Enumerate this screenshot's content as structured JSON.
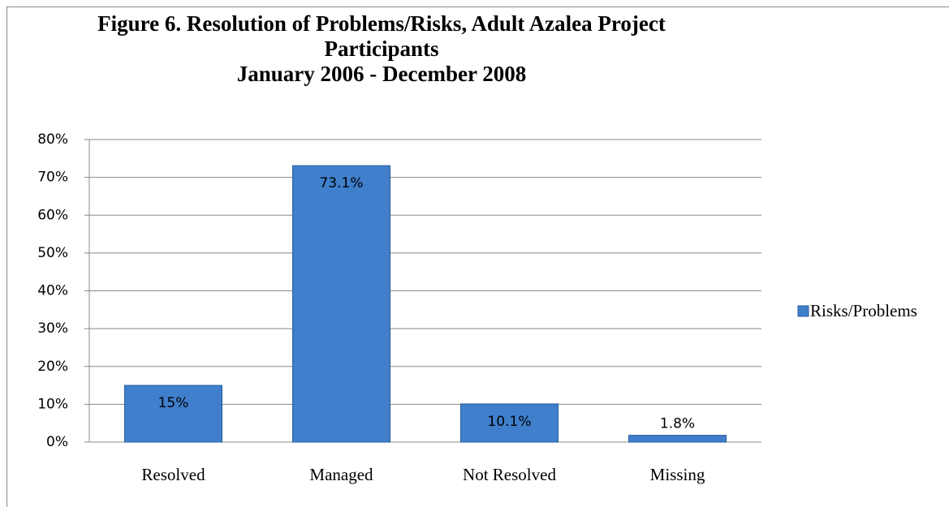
{
  "chart_data": {
    "type": "bar",
    "title": "Figure 6. Resolution of Problems/Risks, Adult Azalea Project Participants",
    "subtitle": "January 2006 - December 2008",
    "categories": [
      "Resolved",
      "Managed",
      "Not Resolved",
      "Missing"
    ],
    "series": [
      {
        "name": "Risks/Problems",
        "color": "#3f7fcc",
        "values": [
          15,
          73.1,
          10.1,
          1.8
        ],
        "value_labels": [
          "15%",
          "73.1%",
          "10.1%",
          "1.8%"
        ]
      }
    ],
    "ylim": [
      0,
      80
    ],
    "yticks": [
      {
        "value": 0,
        "label": "0%"
      },
      {
        "value": 10,
        "label": "10%"
      },
      {
        "value": 20,
        "label": "20%"
      },
      {
        "value": 30,
        "label": "30%"
      },
      {
        "value": 40,
        "label": "40%"
      },
      {
        "value": 50,
        "label": "50%"
      },
      {
        "value": 60,
        "label": "60%"
      },
      {
        "value": 70,
        "label": "70%"
      },
      {
        "value": 80,
        "label": "80%"
      }
    ],
    "grid": true,
    "legend": "right"
  }
}
